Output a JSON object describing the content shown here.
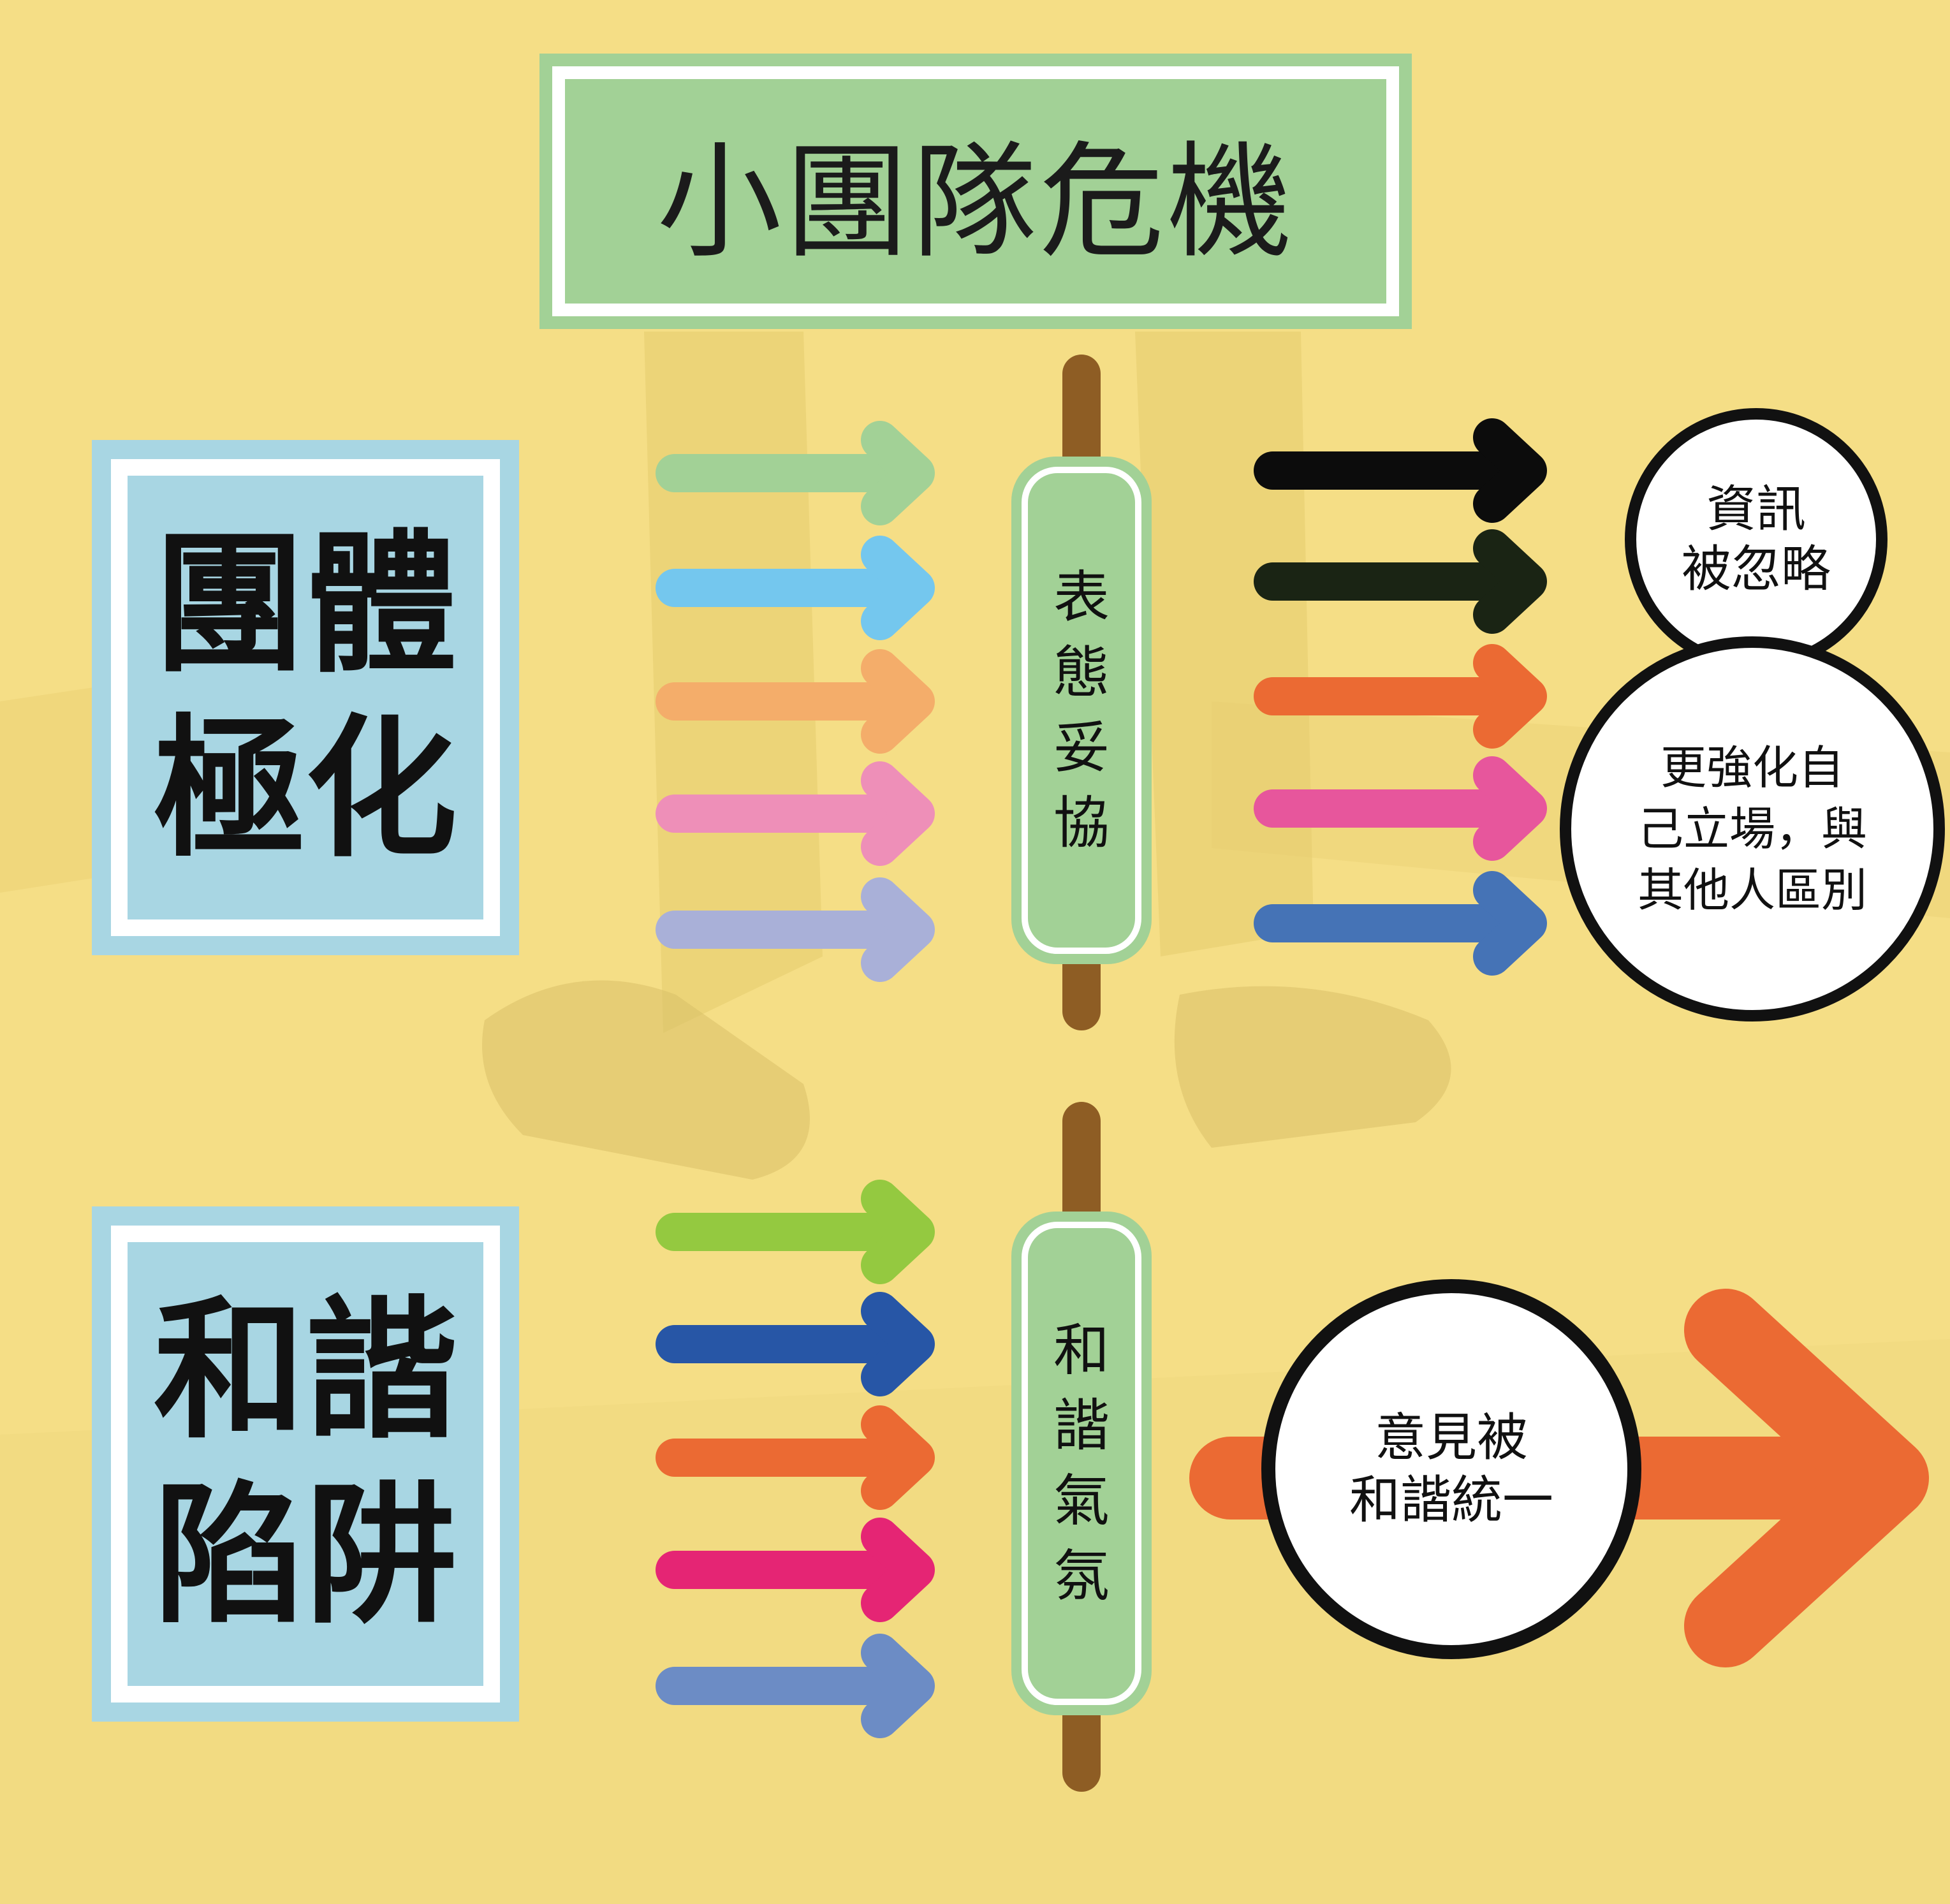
{
  "title": "小團隊危機",
  "sections": [
    {
      "label_lines": [
        "團體",
        "極化"
      ],
      "mechanism_chars": [
        "表",
        "態",
        "妥",
        "協"
      ],
      "input_arrow_colors": [
        "#a2d196",
        "#74c7ee",
        "#f4ad6a",
        "#ee8fb8",
        "#a9b0d8"
      ],
      "output_arrow_colors": [
        "#0c0c0c",
        "#1a2414",
        "#eb6a33",
        "#e7569c",
        "#4573b6"
      ],
      "results": [
        {
          "lines": [
            "資訊",
            "被忽略"
          ]
        },
        {
          "lines": [
            "更強化自",
            "己立場，與",
            "其他人區別"
          ]
        }
      ]
    },
    {
      "label_lines": [
        "和諧",
        "陷阱"
      ],
      "mechanism_chars": [
        "和",
        "諧",
        "氣",
        "氛"
      ],
      "input_arrow_colors": [
        "#94c940",
        "#2756a6",
        "#eb6a33",
        "#e52574",
        "#6c8cc5"
      ],
      "output_arrow_colors": [
        "#eb6a33"
      ],
      "results": [
        {
          "lines": [
            "意見被",
            "和諧統一"
          ]
        }
      ]
    }
  ],
  "colors": {
    "stick": "#8e5d24",
    "pill": "#a2d196",
    "label_box": "#a8d6e3"
  }
}
